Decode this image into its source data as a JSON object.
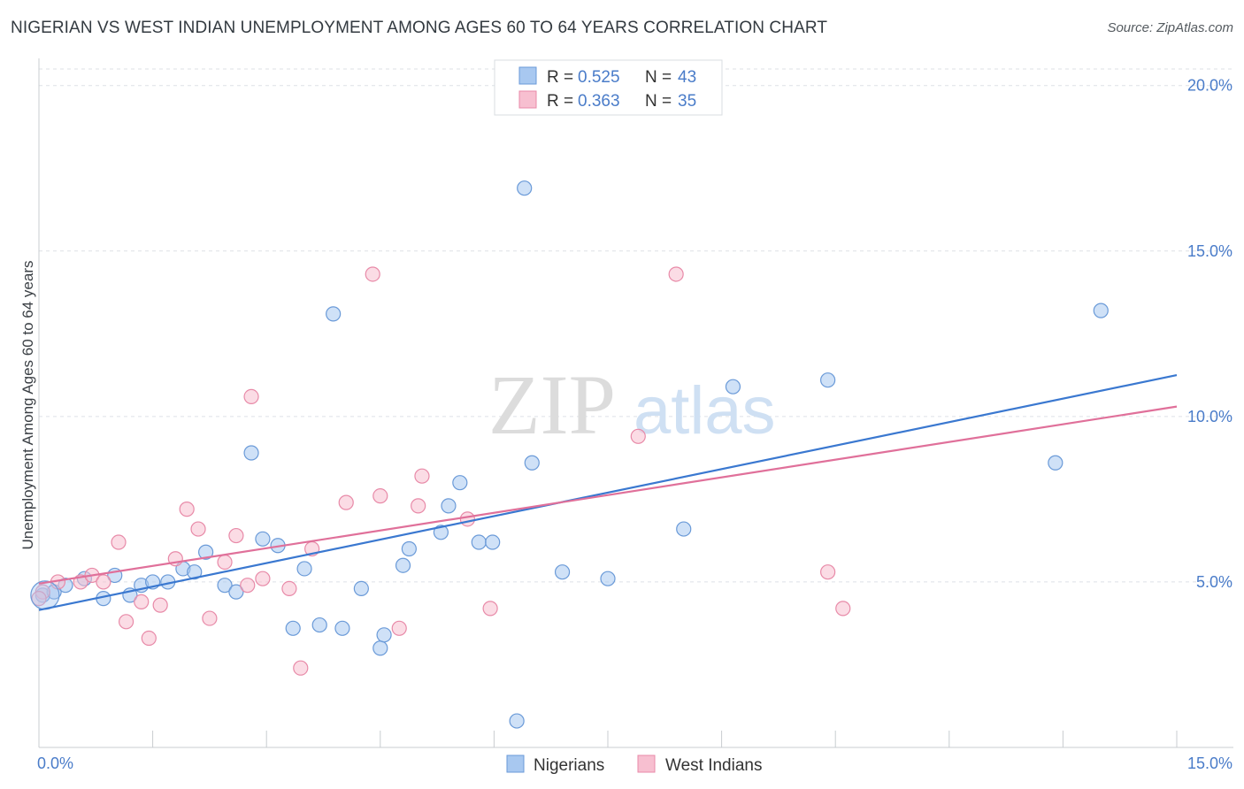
{
  "title": "NIGERIAN VS WEST INDIAN UNEMPLOYMENT AMONG AGES 60 TO 64 YEARS CORRELATION CHART",
  "source": "Source: ZipAtlas.com",
  "watermark": {
    "zip": "ZIP",
    "atlas": "atlas"
  },
  "colors": {
    "blue_fill": "#a8c8f0",
    "blue_stroke": "#6a9ad8",
    "blue_line": "#3a78d0",
    "pink_fill": "#f7bfd0",
    "pink_stroke": "#e88aa8",
    "pink_line": "#e0709a",
    "tick_text": "#4a7cc9",
    "grid": "#dde1e6"
  },
  "legend": {
    "rows": [
      {
        "r_label": "R = ",
        "r_value": "0.525",
        "n_label": "N = ",
        "n_value": "43"
      },
      {
        "r_label": "R = ",
        "r_value": "0.363",
        "n_label": "N = ",
        "n_value": "35"
      }
    ]
  },
  "chart_data": {
    "type": "scatter",
    "title": "NIGERIAN VS WEST INDIAN UNEMPLOYMENT AMONG AGES 60 TO 64 YEARS CORRELATION CHART",
    "xlabel": "",
    "ylabel": "Unemployment Among Ages 60 to 64 years",
    "xlim": [
      0,
      15
    ],
    "ylim": [
      0,
      20.5
    ],
    "x_tick_labels": [
      "0.0%",
      "15.0%"
    ],
    "y_ticks": [
      5,
      10,
      15,
      20
    ],
    "y_tick_labels": [
      "5.0%",
      "10.0%",
      "15.0%",
      "20.0%"
    ],
    "grid": "horizontal dashed",
    "legend_position": "top-center and bottom",
    "series": [
      {
        "name": "Nigerians",
        "color": "blue",
        "points": [
          [
            0.05,
            4.6
          ],
          [
            0.2,
            4.7
          ],
          [
            0.35,
            4.9
          ],
          [
            0.6,
            5.1
          ],
          [
            0.85,
            4.5
          ],
          [
            1.0,
            5.2
          ],
          [
            1.2,
            4.6
          ],
          [
            1.35,
            4.9
          ],
          [
            1.5,
            5.0
          ],
          [
            1.7,
            5.0
          ],
          [
            1.9,
            5.4
          ],
          [
            2.05,
            5.3
          ],
          [
            2.2,
            5.9
          ],
          [
            2.45,
            4.9
          ],
          [
            2.6,
            4.7
          ],
          [
            2.8,
            8.9
          ],
          [
            2.95,
            6.3
          ],
          [
            3.15,
            6.1
          ],
          [
            3.35,
            3.6
          ],
          [
            3.5,
            5.4
          ],
          [
            3.7,
            3.7
          ],
          [
            3.88,
            13.1
          ],
          [
            4.0,
            3.6
          ],
          [
            4.25,
            4.8
          ],
          [
            4.5,
            3.0
          ],
          [
            4.55,
            3.4
          ],
          [
            4.8,
            5.5
          ],
          [
            4.88,
            6.0
          ],
          [
            5.3,
            6.5
          ],
          [
            5.4,
            7.3
          ],
          [
            5.55,
            8.0
          ],
          [
            5.8,
            6.2
          ],
          [
            5.98,
            6.2
          ],
          [
            6.3,
            0.8
          ],
          [
            6.4,
            16.9
          ],
          [
            6.5,
            8.6
          ],
          [
            6.9,
            5.3
          ],
          [
            7.5,
            5.1
          ],
          [
            8.5,
            6.6
          ],
          [
            9.15,
            10.9
          ],
          [
            10.4,
            11.1
          ],
          [
            13.4,
            8.6
          ],
          [
            14.0,
            13.2
          ]
        ]
      },
      {
        "name": "West Indians",
        "color": "pink",
        "points": [
          [
            0.05,
            4.7
          ],
          [
            0.25,
            5.0
          ],
          [
            0.55,
            5.0
          ],
          [
            0.7,
            5.2
          ],
          [
            0.85,
            5.0
          ],
          [
            1.05,
            6.2
          ],
          [
            1.15,
            3.8
          ],
          [
            1.35,
            4.4
          ],
          [
            1.45,
            3.3
          ],
          [
            1.6,
            4.3
          ],
          [
            1.8,
            5.7
          ],
          [
            1.95,
            7.2
          ],
          [
            2.1,
            6.6
          ],
          [
            2.25,
            3.9
          ],
          [
            2.45,
            5.6
          ],
          [
            2.6,
            6.4
          ],
          [
            2.75,
            4.9
          ],
          [
            2.8,
            10.6
          ],
          [
            2.95,
            5.1
          ],
          [
            3.3,
            4.8
          ],
          [
            3.45,
            2.4
          ],
          [
            3.6,
            6.0
          ],
          [
            4.05,
            7.4
          ],
          [
            4.4,
            14.3
          ],
          [
            4.5,
            7.6
          ],
          [
            4.75,
            3.6
          ],
          [
            5.0,
            7.3
          ],
          [
            5.05,
            8.2
          ],
          [
            5.65,
            6.9
          ],
          [
            5.95,
            4.2
          ],
          [
            7.9,
            9.4
          ],
          [
            8.4,
            14.3
          ],
          [
            10.4,
            5.3
          ],
          [
            10.6,
            4.2
          ],
          [
            0.0,
            4.5
          ]
        ]
      }
    ],
    "trendlines": [
      {
        "series": "Nigerians",
        "x": [
          0.0,
          15.0
        ],
        "y": [
          4.15,
          11.25
        ]
      },
      {
        "series": "West Indians",
        "x": [
          0.0,
          15.0
        ],
        "y": [
          4.95,
          10.3
        ]
      }
    ]
  },
  "bottom_legend": [
    "Nigerians",
    "West Indians"
  ]
}
